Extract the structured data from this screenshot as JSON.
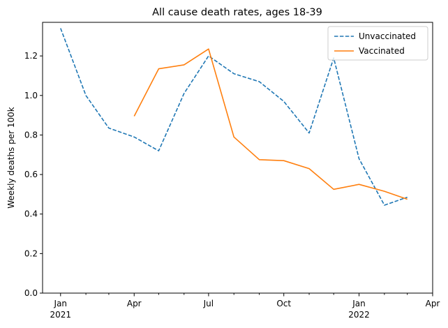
{
  "chart_data": {
    "type": "line",
    "title": "All cause death rates, ages 18-39",
    "xlabel": "",
    "ylabel": "Weekly deaths per 100k",
    "ylim": [
      0,
      1.37
    ],
    "yticks": [
      "0.0",
      "0.2",
      "0.4",
      "0.6",
      "0.8",
      "1.0",
      "1.2"
    ],
    "xlim": [
      "2020-12-10",
      "2022-04-01"
    ],
    "xticks_major": [
      {
        "date": "2021-01-01",
        "label": "Jan",
        "sublabel": "2021"
      },
      {
        "date": "2021-04-01",
        "label": "Apr",
        "sublabel": ""
      },
      {
        "date": "2021-07-01",
        "label": "Jul",
        "sublabel": ""
      },
      {
        "date": "2021-10-01",
        "label": "Oct",
        "sublabel": ""
      },
      {
        "date": "2022-01-01",
        "label": "Jan",
        "sublabel": "2022"
      },
      {
        "date": "2022-04-01",
        "label": "Apr",
        "sublabel": ""
      }
    ],
    "xticks_minor": [
      "2021-02-01",
      "2021-03-01",
      "2021-05-01",
      "2021-06-01",
      "2021-08-01",
      "2021-09-01",
      "2021-11-01",
      "2021-12-01",
      "2022-02-01",
      "2022-03-01"
    ],
    "legend": "upper right",
    "grid": false,
    "series": [
      {
        "name": "Unvaccinated",
        "color": "#1f77b4",
        "style": "dashed",
        "points": [
          {
            "x": "2021-01-01",
            "y": 1.34
          },
          {
            "x": "2021-02-01",
            "y": 1.0
          },
          {
            "x": "2021-03-01",
            "y": 0.835
          },
          {
            "x": "2021-04-01",
            "y": 0.79
          },
          {
            "x": "2021-05-01",
            "y": 0.72
          },
          {
            "x": "2021-06-01",
            "y": 1.01
          },
          {
            "x": "2021-07-01",
            "y": 1.2
          },
          {
            "x": "2021-08-01",
            "y": 1.11
          },
          {
            "x": "2021-09-01",
            "y": 1.07
          },
          {
            "x": "2021-10-01",
            "y": 0.97
          },
          {
            "x": "2021-11-01",
            "y": 0.81
          },
          {
            "x": "2021-12-01",
            "y": 1.19
          },
          {
            "x": "2022-01-01",
            "y": 0.68
          },
          {
            "x": "2022-02-01",
            "y": 0.445
          },
          {
            "x": "2022-03-01",
            "y": 0.485
          }
        ]
      },
      {
        "name": "Vaccinated",
        "color": "#ff7f0e",
        "style": "solid",
        "points": [
          {
            "x": "2021-04-01",
            "y": 0.895
          },
          {
            "x": "2021-05-01",
            "y": 1.135
          },
          {
            "x": "2021-06-01",
            "y": 1.155
          },
          {
            "x": "2021-07-01",
            "y": 1.235
          },
          {
            "x": "2021-08-01",
            "y": 0.79
          },
          {
            "x": "2021-09-01",
            "y": 0.675
          },
          {
            "x": "2021-10-01",
            "y": 0.67
          },
          {
            "x": "2021-11-01",
            "y": 0.63
          },
          {
            "x": "2021-12-01",
            "y": 0.525
          },
          {
            "x": "2022-01-01",
            "y": 0.55
          },
          {
            "x": "2022-02-01",
            "y": 0.515
          },
          {
            "x": "2022-03-01",
            "y": 0.475
          }
        ]
      }
    ]
  }
}
